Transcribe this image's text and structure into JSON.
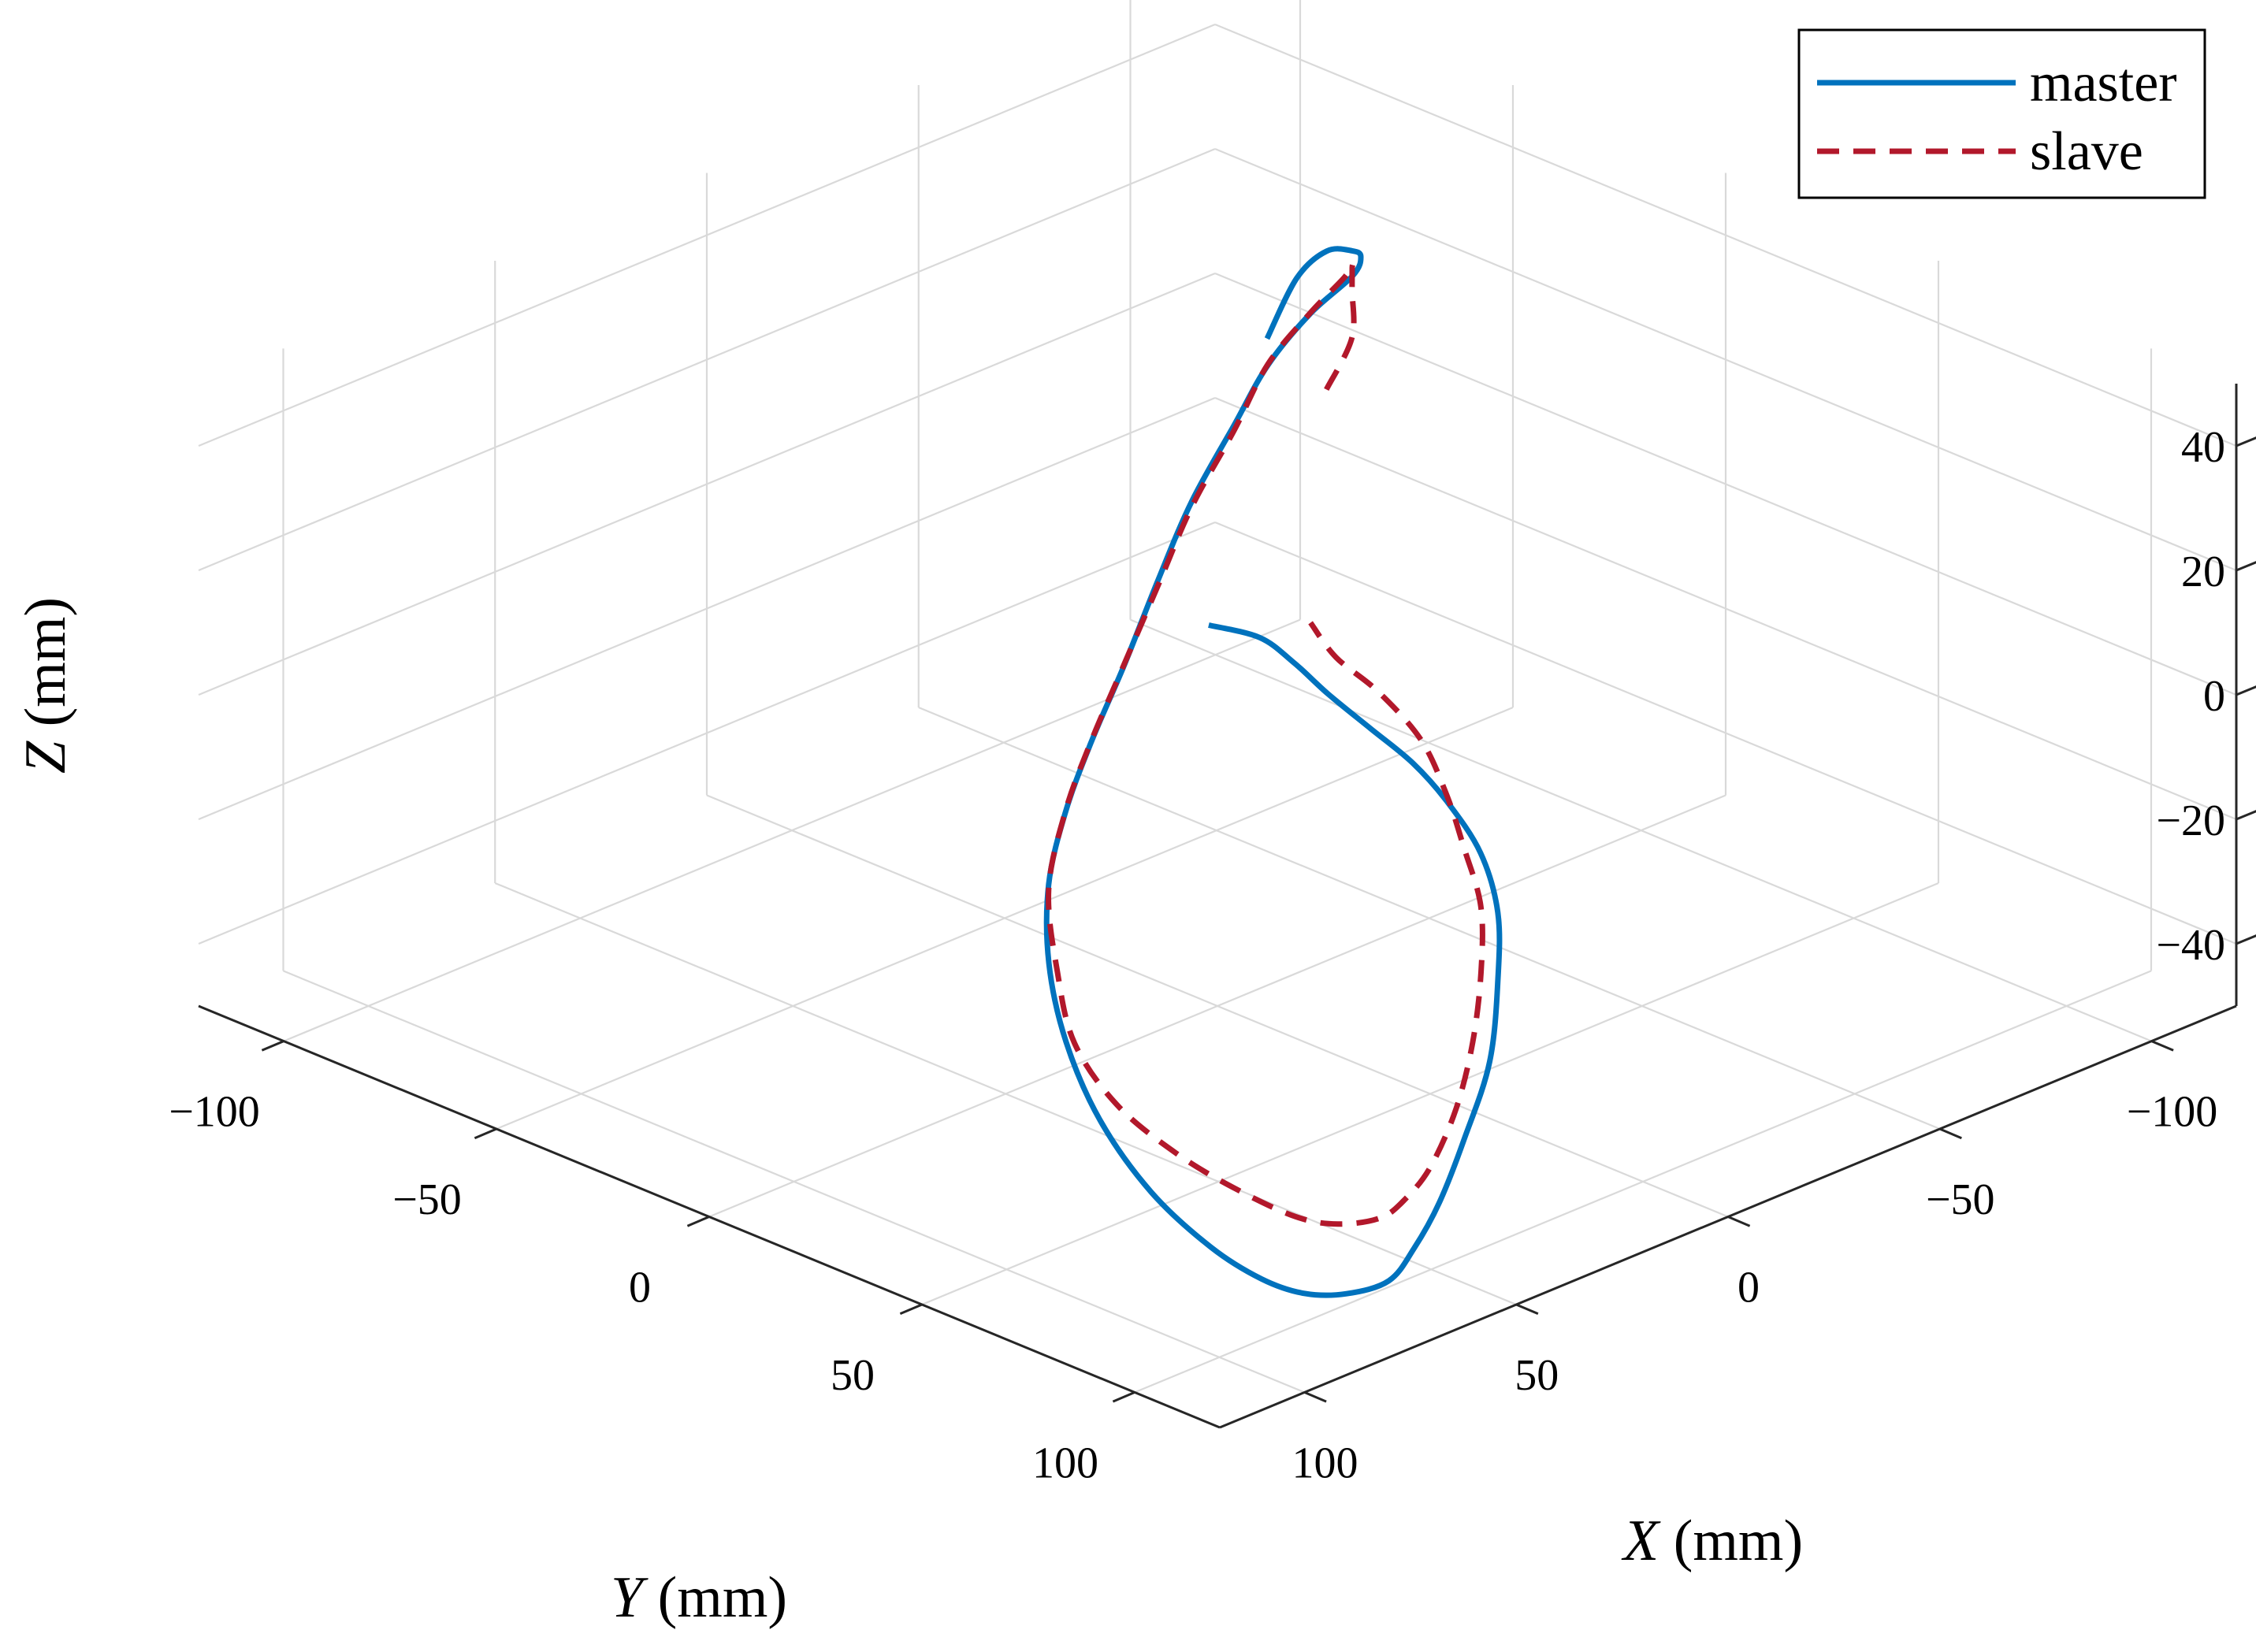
{
  "chart_data": {
    "type": "line",
    "projection": "3d",
    "title": "",
    "xlabel_var": "X",
    "xlabel_unit": " (mm)",
    "ylabel_var": "Y",
    "ylabel_unit": " (mm)",
    "zlabel_var": "Z",
    "zlabel_unit": " (mm)",
    "xlim": [
      -120,
      120
    ],
    "ylim": [
      -120,
      120
    ],
    "zlim": [
      -50,
      50
    ],
    "xticks": [
      -100,
      -50,
      0,
      50,
      100
    ],
    "yticks": [
      -100,
      -50,
      0,
      50,
      100
    ],
    "zticks": [
      -40,
      -20,
      0,
      20,
      40
    ],
    "xtick_labels": [
      "−100",
      "−50",
      "0",
      "50",
      "100"
    ],
    "ytick_labels": [
      "−100",
      "−50",
      "0",
      "50",
      "100"
    ],
    "ztick_labels": [
      "−40",
      "−20",
      "0",
      "20",
      "40"
    ],
    "grid": true,
    "legend_position": "top-right",
    "series": [
      {
        "name": "master",
        "color": "#0072BD",
        "style": "solid",
        "points": [
          [
            -72,
            -60,
            20
          ],
          [
            -75,
            -56,
            30
          ],
          [
            -72,
            -46,
            38
          ],
          [
            -68,
            -36,
            42
          ],
          [
            -62,
            -28,
            45
          ],
          [
            -52,
            -20,
            47
          ],
          [
            -38,
            -16,
            46
          ],
          [
            -22,
            -10,
            44
          ],
          [
            -8,
            -4,
            40
          ],
          [
            8,
            2,
            34
          ],
          [
            22,
            8,
            27
          ],
          [
            36,
            14,
            19
          ],
          [
            50,
            20,
            12
          ],
          [
            62,
            26,
            6
          ],
          [
            74,
            34,
            0
          ],
          [
            84,
            44,
            -7
          ],
          [
            92,
            56,
            -14
          ],
          [
            98,
            70,
            -21
          ],
          [
            100,
            84,
            -28
          ],
          [
            98,
            96,
            -34
          ],
          [
            94,
            104,
            -38
          ],
          [
            86,
            106,
            -42
          ],
          [
            74,
            104,
            -46
          ],
          [
            60,
            100,
            -49
          ],
          [
            46,
            92,
            -50
          ],
          [
            30,
            82,
            -50
          ],
          [
            14,
            72,
            -47
          ],
          [
            -2,
            62,
            -42
          ],
          [
            -16,
            50,
            -36
          ],
          [
            -26,
            40,
            -31
          ],
          [
            -32,
            30,
            -26
          ],
          [
            -34,
            20,
            -21
          ],
          [
            -32,
            14,
            -16
          ],
          [
            -28,
            8,
            -11
          ],
          [
            -24,
            2,
            -6
          ],
          [
            -20,
            -2,
            -1
          ],
          [
            -16,
            -6,
            3
          ],
          [
            -10,
            -12,
            5
          ]
        ]
      },
      {
        "name": "slave",
        "color": "#B2182B",
        "style": "dashed",
        "points": [
          [
            -84,
            -58,
            9
          ],
          [
            -84,
            -52,
            19
          ],
          [
            -78,
            -46,
            30
          ],
          [
            -72,
            -40,
            37
          ],
          [
            -64,
            -32,
            42
          ],
          [
            -54,
            -24,
            45
          ],
          [
            -40,
            -18,
            45
          ],
          [
            -24,
            -12,
            43
          ],
          [
            -10,
            -6,
            38
          ],
          [
            6,
            0,
            32
          ],
          [
            20,
            6,
            25
          ],
          [
            34,
            12,
            18
          ],
          [
            48,
            18,
            11
          ],
          [
            60,
            24,
            5
          ],
          [
            72,
            32,
            -2
          ],
          [
            80,
            42,
            -10
          ],
          [
            86,
            52,
            -17
          ],
          [
            88,
            64,
            -23
          ],
          [
            86,
            76,
            -28
          ],
          [
            82,
            86,
            -32
          ],
          [
            74,
            92,
            -37
          ],
          [
            64,
            92,
            -41
          ],
          [
            52,
            90,
            -44
          ],
          [
            40,
            84,
            -46
          ],
          [
            26,
            76,
            -47
          ],
          [
            12,
            68,
            -44
          ],
          [
            -2,
            58,
            -40
          ],
          [
            -14,
            48,
            -35
          ],
          [
            -24,
            38,
            -30
          ],
          [
            -30,
            28,
            -25
          ],
          [
            -34,
            20,
            -20
          ],
          [
            -36,
            12,
            -14
          ],
          [
            -34,
            4,
            -8
          ],
          [
            -30,
            -2,
            -3
          ],
          [
            -28,
            -6,
            2
          ]
        ]
      }
    ]
  }
}
